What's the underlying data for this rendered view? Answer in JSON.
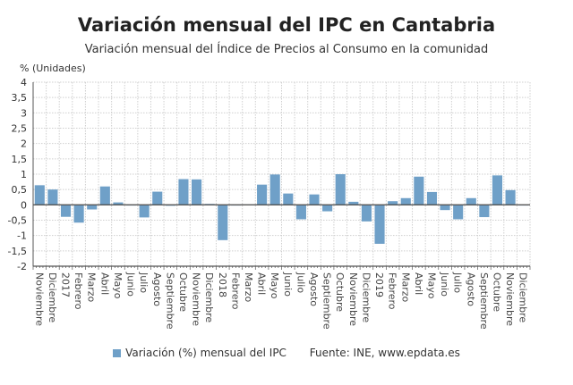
{
  "chart_data": {
    "type": "bar",
    "title": "Variación mensual del IPC en Cantabria",
    "subtitle": "Variación mensual del Índice de Precios al Consumo en la comunidad",
    "ylabel": "% (Unidades)",
    "xlabel": "",
    "ylim": [
      -2,
      4
    ],
    "yticks": [
      "-2",
      "-1,5",
      "-1",
      "-0,5",
      "0",
      "0,5",
      "1",
      "1,5",
      "2",
      "2,5",
      "3",
      "3,5",
      "4"
    ],
    "ytick_values": [
      -2,
      -1.5,
      -1,
      -0.5,
      0,
      0.5,
      1,
      1.5,
      2,
      2.5,
      3,
      3.5,
      4
    ],
    "grid": true,
    "categories": [
      "Noviembre",
      "Diciembre",
      "2017",
      "Febrero",
      "Marzo",
      "Abril",
      "Mayo",
      "Junio",
      "Julio",
      "Agosto",
      "Septiembre",
      "Octubre",
      "Noviembre",
      "Diciembre",
      "2018",
      "Febrero",
      "Marzo",
      "Abril",
      "Mayo",
      "Junio",
      "Julio",
      "Agosto",
      "Septiembre",
      "Octubre",
      "Noviembre",
      "Diciembre",
      "2019",
      "Febrero",
      "Marzo",
      "Abril",
      "Mayo",
      "Junio",
      "Julio",
      "Agosto",
      "Septiembre",
      "Octubre",
      "Noviembre",
      "Diciembre"
    ],
    "series": [
      {
        "name": "Variación (%) mensual del IPC",
        "color": "#6fa0c8",
        "values": [
          0.64,
          0.5,
          -0.39,
          -0.58,
          -0.15,
          0.6,
          0.08,
          0.0,
          -0.41,
          0.43,
          -0.03,
          0.84,
          0.83,
          0.03,
          -1.15,
          -0.01,
          0.01,
          0.66,
          0.99,
          0.37,
          -0.47,
          0.34,
          -0.21,
          1.0,
          0.1,
          -0.54,
          -1.27,
          0.12,
          0.22,
          0.92,
          0.42,
          -0.17,
          -0.47,
          0.22,
          -0.4,
          0.96,
          0.48,
          -0.01
        ]
      }
    ],
    "legend": "bottom",
    "source": "Fuente: INE, www.epdata.es"
  }
}
